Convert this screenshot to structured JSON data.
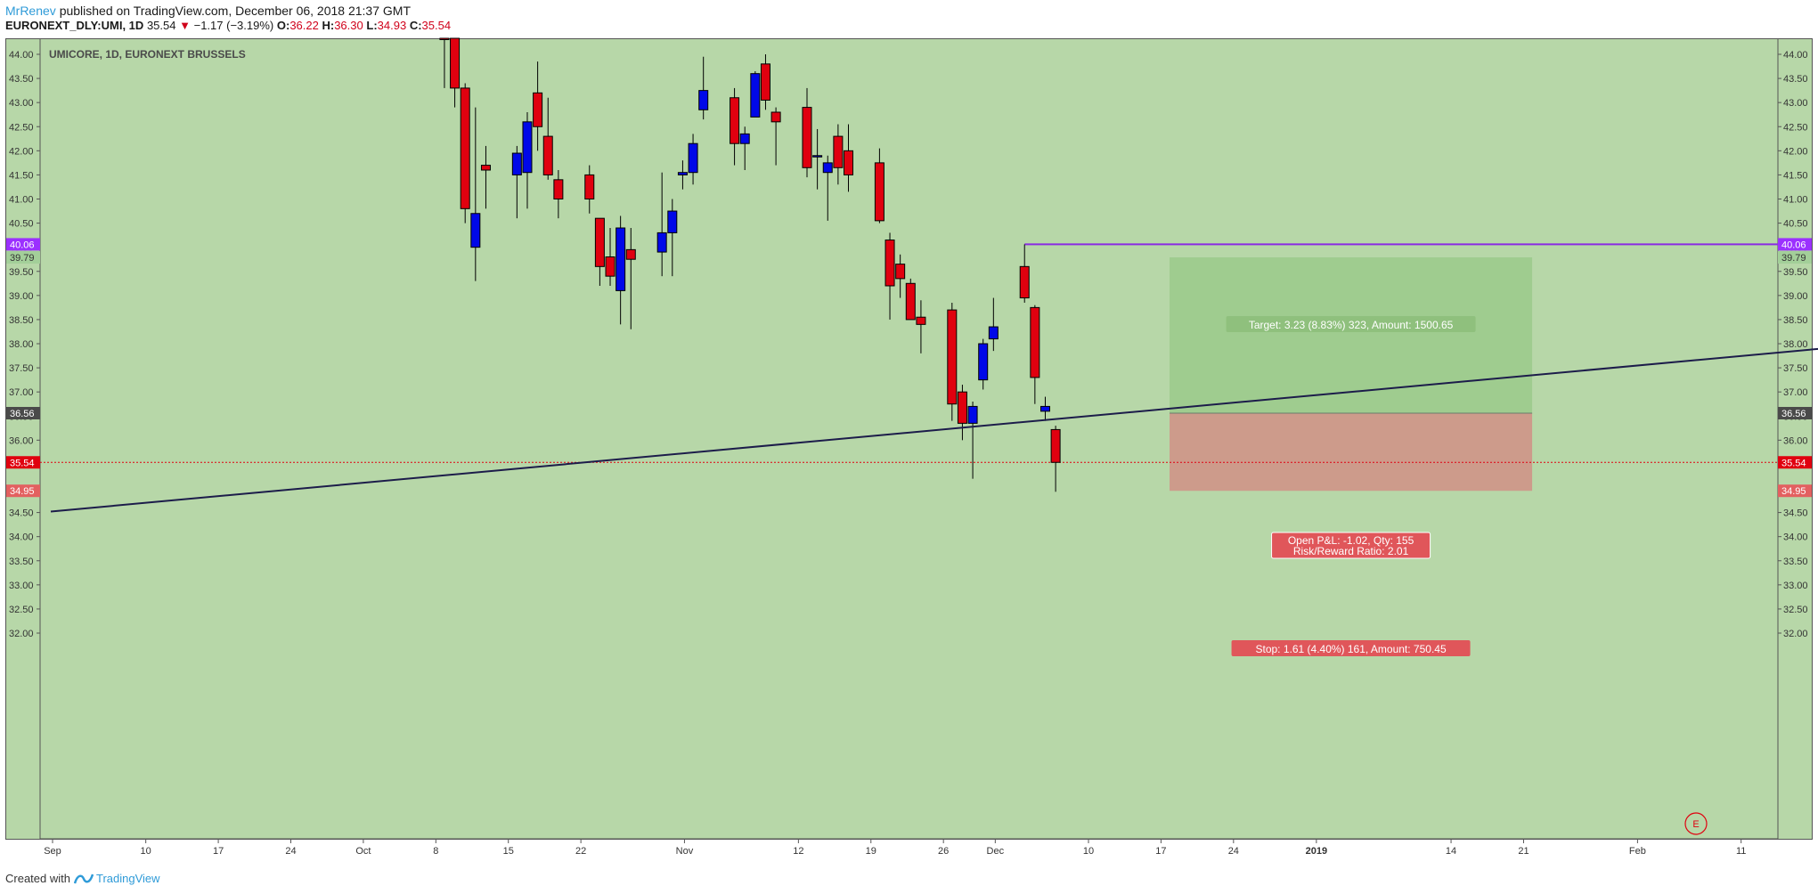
{
  "header": {
    "author": "MrRenev",
    "published_text": "published on TradingView.com, December 06, 2018 21:37 GMT",
    "symbol": "EURONEXT_DLY:UMI, 1D",
    "last": "35.54",
    "down_arrow": "▼",
    "change": "−1.17 (−3.19%)",
    "o_label": "O:",
    "o_value": "36.22",
    "h_label": "H:",
    "h_value": "36.30",
    "l_label": "L:",
    "l_value": "34.93",
    "c_label": "C:",
    "c_value": "35.54"
  },
  "footer": {
    "created_with": "Created with",
    "brand": "TradingView"
  },
  "chart_data": {
    "type": "candlestick",
    "title": "UMICORE, 1D, EURONEXT BRUSSELS",
    "ylim": [
      31.8,
      44.5
    ],
    "y_ticks": [
      "32.00",
      "32.50",
      "33.00",
      "33.50",
      "34.00",
      "34.50",
      "35.00",
      "35.50",
      "36.00",
      "36.50",
      "37.00",
      "37.50",
      "38.00",
      "38.50",
      "39.00",
      "39.50",
      "40.00",
      "40.50",
      "41.00",
      "41.50",
      "42.00",
      "42.50",
      "43.00",
      "43.50",
      "44.00"
    ],
    "x_ticks": [
      {
        "label": "Sep",
        "day": 0
      },
      {
        "label": "10",
        "day": 9
      },
      {
        "label": "17",
        "day": 16
      },
      {
        "label": "24",
        "day": 23
      },
      {
        "label": "Oct",
        "day": 30
      },
      {
        "label": "8",
        "day": 37
      },
      {
        "label": "15",
        "day": 44
      },
      {
        "label": "22",
        "day": 51
      },
      {
        "label": "Nov",
        "day": 61
      },
      {
        "label": "12",
        "day": 72
      },
      {
        "label": "19",
        "day": 79
      },
      {
        "label": "26",
        "day": 86
      },
      {
        "label": "Dec",
        "day": 91
      },
      {
        "label": "10",
        "day": 100
      },
      {
        "label": "17",
        "day": 107
      },
      {
        "label": "24",
        "day": 114
      },
      {
        "label": "2019",
        "day": 122
      },
      {
        "label": "14",
        "day": 135
      },
      {
        "label": "21",
        "day": 142
      },
      {
        "label": "Feb",
        "day": 153
      },
      {
        "label": "11",
        "day": 163
      }
    ],
    "candles": [
      {
        "date": "2018-10-08",
        "o": 44.6,
        "h": 44.9,
        "l": 43.3,
        "c": 44.4
      },
      {
        "date": "2018-10-09",
        "o": 44.6,
        "h": 44.8,
        "l": 42.9,
        "c": 43.3
      },
      {
        "date": "2018-10-10",
        "o": 43.3,
        "h": 43.4,
        "l": 40.5,
        "c": 40.8
      },
      {
        "date": "2018-10-11",
        "o": 40.0,
        "h": 42.9,
        "l": 39.3,
        "c": 40.7
      },
      {
        "date": "2018-10-12",
        "o": 41.7,
        "h": 42.1,
        "l": 40.8,
        "c": 41.6
      },
      {
        "date": "2018-10-15",
        "o": 41.5,
        "h": 42.1,
        "l": 40.6,
        "c": 41.95
      },
      {
        "date": "2018-10-16",
        "o": 41.55,
        "h": 42.8,
        "l": 40.8,
        "c": 42.6
      },
      {
        "date": "2018-10-17",
        "o": 43.2,
        "h": 43.85,
        "l": 42.0,
        "c": 42.5
      },
      {
        "date": "2018-10-18",
        "o": 42.3,
        "h": 43.1,
        "l": 41.4,
        "c": 41.5
      },
      {
        "date": "2018-10-19",
        "o": 41.4,
        "h": 41.6,
        "l": 40.6,
        "c": 41.0
      },
      {
        "date": "2018-10-22",
        "o": 41.5,
        "h": 41.7,
        "l": 40.7,
        "c": 41.0
      },
      {
        "date": "2018-10-23",
        "o": 40.6,
        "h": 40.6,
        "l": 39.2,
        "c": 39.6
      },
      {
        "date": "2018-10-24",
        "o": 39.8,
        "h": 40.4,
        "l": 39.2,
        "c": 39.4
      },
      {
        "date": "2018-10-25",
        "o": 39.1,
        "h": 40.65,
        "l": 38.4,
        "c": 40.4
      },
      {
        "date": "2018-10-26",
        "o": 39.95,
        "h": 40.4,
        "l": 38.3,
        "c": 39.75
      },
      {
        "date": "2018-10-29",
        "o": 39.9,
        "h": 41.55,
        "l": 39.4,
        "c": 40.3
      },
      {
        "date": "2018-10-30",
        "o": 40.3,
        "h": 41.0,
        "l": 39.4,
        "c": 40.75
      },
      {
        "date": "2018-10-31",
        "o": 41.5,
        "h": 41.8,
        "l": 41.2,
        "c": 41.55
      },
      {
        "date": "2018-11-01",
        "o": 41.55,
        "h": 42.35,
        "l": 41.3,
        "c": 42.15
      },
      {
        "date": "2018-11-02",
        "o": 42.85,
        "h": 43.95,
        "l": 42.65,
        "c": 43.25
      },
      {
        "date": "2018-11-05",
        "o": 43.1,
        "h": 43.3,
        "l": 41.7,
        "c": 42.15
      },
      {
        "date": "2018-11-06",
        "o": 42.15,
        "h": 42.5,
        "l": 41.6,
        "c": 42.35
      },
      {
        "date": "2018-11-07",
        "o": 42.7,
        "h": 43.65,
        "l": 42.7,
        "c": 43.6
      },
      {
        "date": "2018-11-08",
        "o": 43.8,
        "h": 44.0,
        "l": 42.85,
        "c": 43.05
      },
      {
        "date": "2018-11-09",
        "o": 42.8,
        "h": 42.9,
        "l": 41.7,
        "c": 42.6
      },
      {
        "date": "2018-11-12",
        "o": 42.9,
        "h": 43.3,
        "l": 41.45,
        "c": 41.65
      },
      {
        "date": "2018-11-13",
        "o": 41.9,
        "h": 42.45,
        "l": 41.2,
        "c": 41.9
      },
      {
        "date": "2018-11-14",
        "o": 41.55,
        "h": 41.9,
        "l": 40.55,
        "c": 41.75
      },
      {
        "date": "2018-11-15",
        "o": 42.3,
        "h": 42.55,
        "l": 41.3,
        "c": 41.65
      },
      {
        "date": "2018-11-16",
        "o": 42.0,
        "h": 42.55,
        "l": 41.15,
        "c": 41.5
      },
      {
        "date": "2018-11-19",
        "o": 41.75,
        "h": 42.05,
        "l": 40.5,
        "c": 40.55
      },
      {
        "date": "2018-11-20",
        "o": 40.15,
        "h": 40.3,
        "l": 38.5,
        "c": 39.2
      },
      {
        "date": "2018-11-21",
        "o": 39.65,
        "h": 39.85,
        "l": 38.95,
        "c": 39.35
      },
      {
        "date": "2018-11-22",
        "o": 39.25,
        "h": 39.35,
        "l": 38.5,
        "c": 38.5
      },
      {
        "date": "2018-11-23",
        "o": 38.55,
        "h": 38.9,
        "l": 37.8,
        "c": 38.4
      },
      {
        "date": "2018-11-26",
        "o": 38.7,
        "h": 38.85,
        "l": 36.4,
        "c": 36.75
      },
      {
        "date": "2018-11-27",
        "o": 37.0,
        "h": 37.15,
        "l": 36.0,
        "c": 36.35
      },
      {
        "date": "2018-11-28",
        "o": 36.35,
        "h": 36.8,
        "l": 35.2,
        "c": 36.7
      },
      {
        "date": "2018-11-29",
        "o": 37.25,
        "h": 38.1,
        "l": 37.05,
        "c": 38.0
      },
      {
        "date": "2018-11-30",
        "o": 38.1,
        "h": 38.95,
        "l": 37.85,
        "c": 38.35
      },
      {
        "date": "2018-12-03",
        "o": 39.6,
        "h": 40.06,
        "l": 38.85,
        "c": 38.95
      },
      {
        "date": "2018-12-04",
        "o": 38.75,
        "h": 38.8,
        "l": 36.75,
        "c": 37.3
      },
      {
        "date": "2018-12-05",
        "o": 36.6,
        "h": 36.9,
        "l": 36.4,
        "c": 36.7
      },
      {
        "date": "2018-12-06",
        "o": 36.22,
        "h": 36.3,
        "l": 34.93,
        "c": 35.54
      }
    ],
    "trendline": {
      "from": {
        "date": "2018-08-31",
        "price": 34.52
      },
      "to": {
        "date": "2019-02-18",
        "price": 37.9
      }
    },
    "resistance_line": {
      "price": 40.06,
      "from_date": "2018-12-03"
    },
    "current_price_line": 35.54,
    "position": {
      "entry": 36.56,
      "target": 39.79,
      "stop": 34.95,
      "from_date": "2018-12-17",
      "to_date": "2019-01-21",
      "target_label": "Target: 3.23 (8.83%) 323, Amount: 1500.65",
      "pl_label": "Open P&L: -1.02, Qty: 155",
      "rr_label": "Risk/Reward Ratio: 2.01",
      "stop_label": "Stop: 1.61 (4.40%) 161, Amount: 750.45"
    },
    "price_tags": [
      {
        "text": "40.06",
        "price": 40.06,
        "color": "#9b30ff"
      },
      {
        "text": "39.79",
        "price": 39.79,
        "color": "#a3cf99"
      },
      {
        "text": "36.56",
        "price": 36.56,
        "color": "#4a4a4a"
      },
      {
        "text": "35.54",
        "price": 35.54,
        "color": "#e0000f"
      },
      {
        "text": "34.95",
        "price": 34.95,
        "color": "#e36060"
      }
    ],
    "event_marker": "E",
    "colors": {
      "background": "#b7d7a8",
      "up": "#0008e8",
      "down": "#e0000f",
      "target_zone": "#9fcc8f",
      "stop_zone": "#cd9b8b",
      "trendline": "#1c1c4a",
      "resistance": "#8a2be2"
    }
  }
}
